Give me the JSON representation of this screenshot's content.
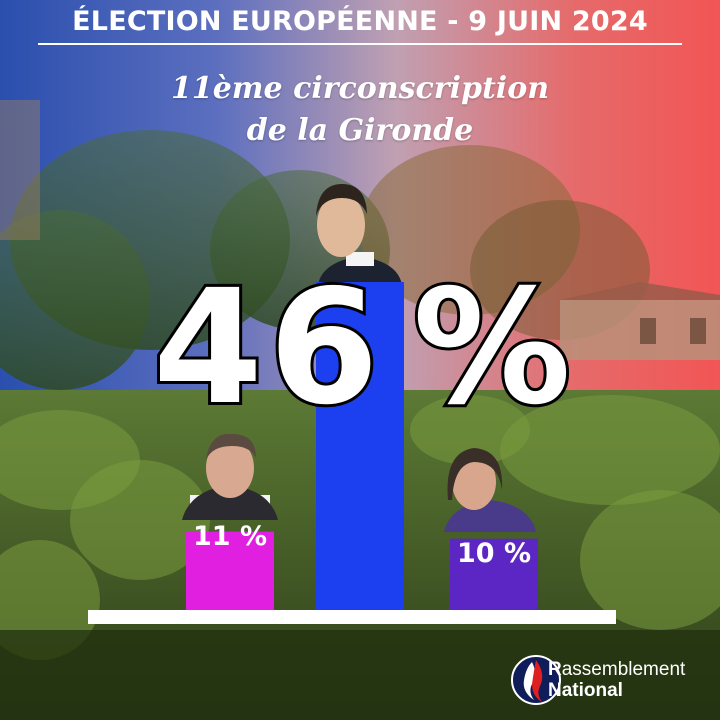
{
  "title": "ÉLECTION EUROPÉENNE - 9 JUIN 2024",
  "subtitle_line1": "11ème circonscription",
  "subtitle_line2": "de la Gironde",
  "chart_data": {
    "type": "bar",
    "unit": "%",
    "values": [
      11,
      46,
      10
    ],
    "labels": [
      "11 %",
      "46 %",
      "10 %"
    ],
    "colors": [
      "#e01fe0",
      "#1c3ff0",
      "#5b26c4"
    ],
    "ylim": [
      0,
      46
    ]
  },
  "logo": {
    "line1_initial": "R",
    "line1_rest": "assemblement",
    "line2": "National"
  },
  "colors": {
    "gradient_left": "#2a4fae",
    "gradient_right": "#f25555",
    "axis": "#ffffff"
  }
}
